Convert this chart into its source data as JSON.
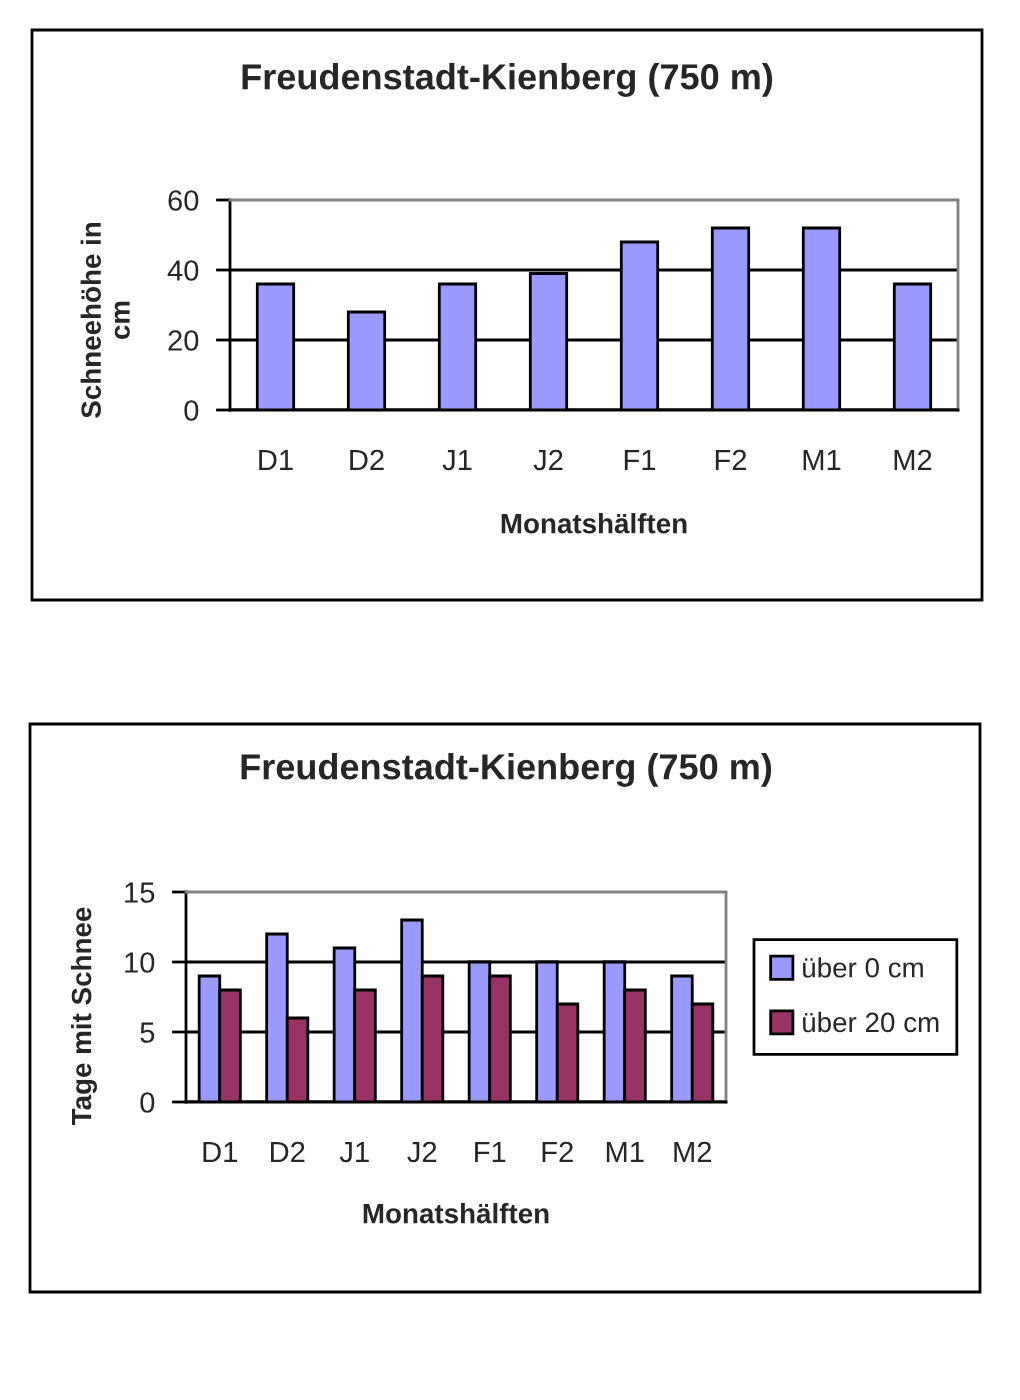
{
  "chart_data": [
    {
      "type": "bar",
      "title": "Freudenstadt-Kienberg (750 m)",
      "xlabel": "Monatshälften",
      "ylabel": "Schneehöhe in\ncm",
      "categories": [
        "D1",
        "D2",
        "J1",
        "J2",
        "F1",
        "F2",
        "M1",
        "M2"
      ],
      "values": [
        36,
        28,
        36,
        39,
        48,
        52,
        52,
        36
      ],
      "color": "#9999ff",
      "ylim": [
        0,
        60
      ],
      "yticks": [
        0,
        20,
        40,
        60
      ],
      "grid": "y"
    },
    {
      "type": "bar",
      "title": "Freudenstadt-Kienberg (750 m)",
      "xlabel": "Monatshälften",
      "ylabel": "Tage mit Schnee",
      "categories": [
        "D1",
        "D2",
        "J1",
        "J2",
        "F1",
        "F2",
        "M1",
        "M2"
      ],
      "series": [
        {
          "name": "über 0 cm",
          "color": "#9999ff",
          "values": [
            9,
            12,
            11,
            13,
            10,
            10,
            10,
            9
          ]
        },
        {
          "name": "über 20 cm",
          "color": "#993366",
          "values": [
            8,
            6,
            8,
            9,
            9,
            7,
            8,
            7
          ]
        }
      ],
      "ylim": [
        0,
        15
      ],
      "yticks": [
        0,
        5,
        10,
        15
      ],
      "grid": "y",
      "legend": "right"
    }
  ]
}
